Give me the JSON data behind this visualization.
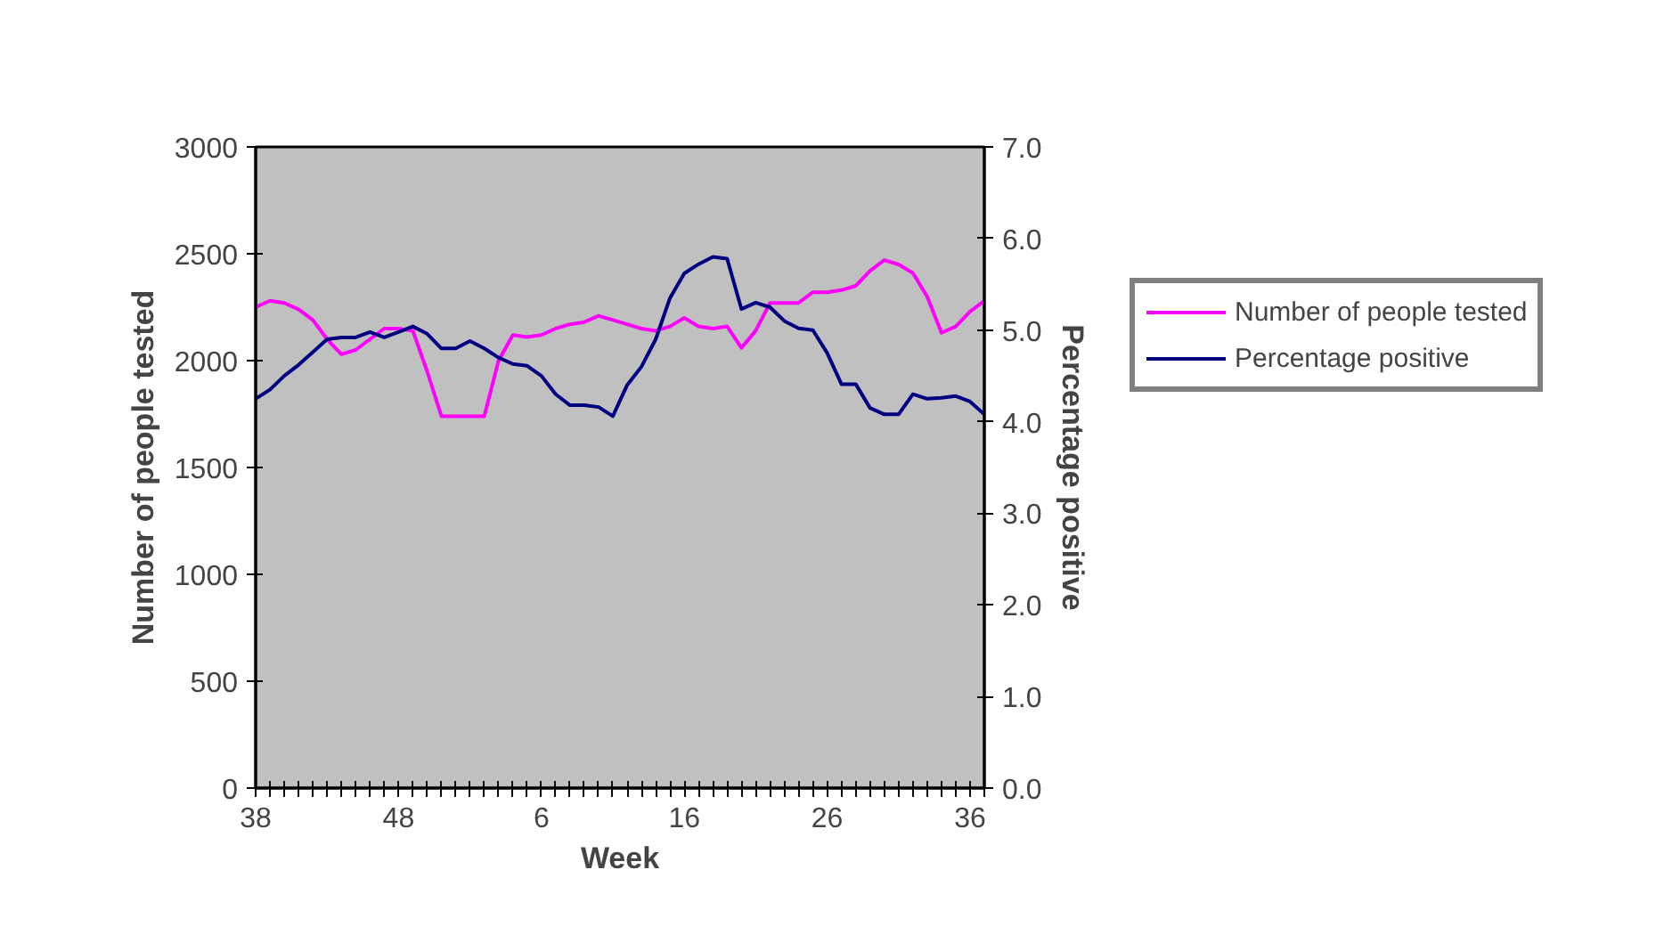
{
  "chart_data": {
    "type": "line",
    "xlabel": "Week",
    "ylabel": "Number of people tested",
    "y2label": "Percentage positive",
    "categories": [
      "38",
      null,
      null,
      null,
      null,
      null,
      null,
      null,
      null,
      null,
      "48",
      null,
      null,
      null,
      null,
      null,
      null,
      null,
      null,
      null,
      "6",
      null,
      null,
      null,
      null,
      null,
      null,
      null,
      null,
      null,
      "16",
      null,
      null,
      null,
      null,
      null,
      null,
      null,
      null,
      null,
      "26",
      null,
      null,
      null,
      null,
      null,
      null,
      null,
      null,
      null,
      "36",
      null
    ],
    "series": [
      {
        "name": "Number of people tested",
        "color": "#ff00ff",
        "values": [
          2250,
          2280,
          2270,
          2240,
          2190,
          2100,
          2030,
          2050,
          2100,
          2150,
          2150,
          2140,
          1950,
          1740,
          1740,
          1740,
          1740,
          2000,
          2120,
          2110,
          2120,
          2150,
          2170,
          2180,
          2210,
          2190,
          2170,
          2150,
          2140,
          2160,
          2200,
          2160,
          2150,
          2160,
          2060,
          2140,
          2270,
          2270,
          2270,
          2320,
          2320,
          2330,
          2350,
          2420,
          2470,
          2450,
          2410,
          2300,
          2130,
          2160,
          2230,
          2280
        ]
      },
      {
        "name": "Percentage positive",
        "color": "#000080",
        "axis": "y2",
        "values": [
          4.25,
          4.35,
          4.5,
          4.62,
          4.76,
          4.9,
          4.92,
          4.92,
          4.98,
          4.92,
          4.98,
          5.04,
          4.96,
          4.8,
          4.8,
          4.88,
          4.8,
          4.7,
          4.63,
          4.61,
          4.5,
          4.3,
          4.18,
          4.18,
          4.16,
          4.06,
          4.4,
          4.6,
          4.9,
          5.35,
          5.62,
          5.72,
          5.8,
          5.78,
          5.23,
          5.3,
          5.25,
          5.1,
          5.02,
          5.0,
          4.75,
          4.41,
          4.41,
          4.15,
          4.08,
          4.08,
          4.3,
          4.25,
          4.26,
          4.28,
          4.22,
          4.08
        ]
      }
    ],
    "ylim": [
      0,
      3000
    ],
    "yticks": [
      0,
      500,
      1000,
      1500,
      2000,
      2500,
      3000
    ],
    "y2lim": [
      0,
      7
    ],
    "y2ticks": [
      {
        "value": 0,
        "label": "0.0"
      },
      {
        "value": 1,
        "label": "1.0"
      },
      {
        "value": 2,
        "label": "2.0"
      },
      {
        "value": 3,
        "label": "3.0"
      },
      {
        "value": 4,
        "label": "4.0"
      },
      {
        "value": 5,
        "label": "5.0"
      },
      {
        "value": 6,
        "label": "6.0"
      },
      {
        "value": 7,
        "label": "7.0"
      }
    ],
    "legend": "right",
    "grid": false
  }
}
